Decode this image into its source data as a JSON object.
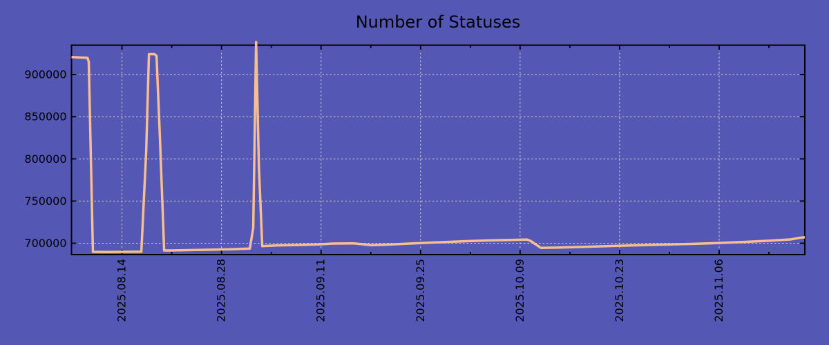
{
  "colors": {
    "background": "#5457B4",
    "line": "#F9BE8F",
    "grid": "#D2D2D2",
    "border": "#000000",
    "text": "#000000"
  },
  "chart_data": {
    "type": "line",
    "title": "Number of Statuses",
    "legend": "none",
    "grid": true,
    "x_unit": "days from plot left edge (left edge ≈ 2025.08.07, right edge ≈ 2025.11.18)",
    "x_range": [
      0,
      103.15
    ],
    "y_range": [
      686500,
      934800
    ],
    "y_ticks": [
      {
        "value": 900000,
        "label": "900000"
      },
      {
        "value": 850000,
        "label": "850000"
      },
      {
        "value": 800000,
        "label": "800000"
      },
      {
        "value": 750000,
        "label": "750000"
      },
      {
        "value": 700000,
        "label": "700000"
      }
    ],
    "x_ticks": [
      {
        "day": 7.1,
        "label": "2025.08.14"
      },
      {
        "day": 21.1,
        "label": "2025.08.28"
      },
      {
        "day": 35.1,
        "label": "2025.09.11"
      },
      {
        "day": 49.1,
        "label": "2025.09.25"
      },
      {
        "day": 63.1,
        "label": "2025.10.09"
      },
      {
        "day": 77.1,
        "label": "2025.10.23"
      },
      {
        "day": 91.1,
        "label": "2025.11.06"
      }
    ],
    "x_minor_tick_days": [
      14.1,
      28.1,
      42.1,
      56.1,
      70.1,
      84.1,
      98.1
    ],
    "series": [
      {
        "name": "statuses",
        "points": [
          [
            0,
            920700
          ],
          [
            2.24,
            919900
          ],
          [
            2.43,
            915000
          ],
          [
            3.01,
            689800
          ],
          [
            5,
            689600
          ],
          [
            9.82,
            689900
          ],
          [
            10.5,
            808500
          ],
          [
            10.89,
            924200
          ],
          [
            11.67,
            924200
          ],
          [
            11.96,
            922200
          ],
          [
            12.44,
            825000
          ],
          [
            13.03,
            691400
          ],
          [
            15.17,
            691600
          ],
          [
            19.05,
            692200
          ],
          [
            22.46,
            692800
          ],
          [
            25.08,
            693600
          ],
          [
            25.57,
            718400
          ],
          [
            25.96,
            938500
          ],
          [
            26.35,
            792200
          ],
          [
            26.83,
            696600
          ],
          [
            28.78,
            697300
          ],
          [
            32.67,
            698000
          ],
          [
            34.9,
            698700
          ],
          [
            36.75,
            699600
          ],
          [
            39.67,
            699800
          ],
          [
            41.12,
            698700
          ],
          [
            42.1,
            697700
          ],
          [
            44.04,
            698100
          ],
          [
            46.47,
            699200
          ],
          [
            48.9,
            700100
          ],
          [
            52.11,
            701200
          ],
          [
            55.22,
            702400
          ],
          [
            58.43,
            703300
          ],
          [
            61.83,
            703900
          ],
          [
            64.07,
            704400
          ],
          [
            64.55,
            702900
          ],
          [
            66.02,
            694500
          ],
          [
            68.64,
            694900
          ],
          [
            72.53,
            695800
          ],
          [
            76.91,
            697000
          ],
          [
            81.77,
            698000
          ],
          [
            87.11,
            699200
          ],
          [
            90.52,
            700100
          ],
          [
            94.41,
            701400
          ],
          [
            98.3,
            703000
          ],
          [
            101.21,
            704600
          ],
          [
            102.47,
            706500
          ],
          [
            103.15,
            707100
          ]
        ]
      }
    ]
  }
}
